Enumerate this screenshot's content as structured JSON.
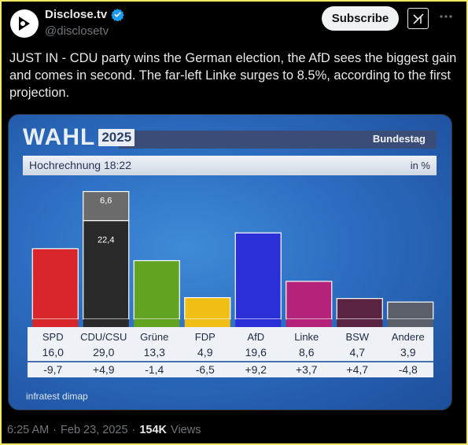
{
  "account": {
    "name": "Disclose.tv",
    "handle": "@disclosetv",
    "avatar_icon": "disclose-logo-icon",
    "verified_color": "#1d9bf0"
  },
  "actions": {
    "subscribe_label": "Subscribe",
    "grok_icon": "grok-icon",
    "more_icon": "more-dots-icon"
  },
  "tweet": {
    "text": "JUST IN - CDU party wins the German election, the AfD sees the biggest gain and comes in second. The far-left Linke surges to 8.5%, according to the first projection."
  },
  "media": {
    "wahl": "WAHL",
    "year": "2025",
    "bundestag": "Bundestag",
    "hochrechnung": "Hochrechnung 18:22",
    "unit": "in %",
    "source": "infratest dimap"
  },
  "chart_data": {
    "type": "bar",
    "categories": [
      "SPD",
      "CDU/CSU",
      "Grüne",
      "FDP",
      "AfD",
      "Linke",
      "BSW",
      "Andere"
    ],
    "values": [
      16.0,
      29.0,
      13.3,
      4.9,
      19.6,
      8.6,
      4.7,
      3.9
    ],
    "values_text": [
      "16,0",
      "29,0",
      "13,3",
      "4,9",
      "19,6",
      "8,6",
      "4,7",
      "3,9"
    ],
    "changes_text": [
      "-9,7",
      "+4,9",
      "-1,4",
      "-6,5",
      "+9,2",
      "+3,7",
      "+4,7",
      "-4,8"
    ],
    "colors": [
      "#d8262b",
      "#2a2a2a",
      "#63a322",
      "#f0bf16",
      "#2b2fd8",
      "#b5227a",
      "#5a2340",
      "#5a5f6a"
    ],
    "stacked": {
      "category": "CDU/CSU",
      "parts": [
        {
          "label": "22,4",
          "value": 22.4,
          "color": "#2a2a2a"
        },
        {
          "label": "6,6",
          "value": 6.6,
          "color": "#6b6b6b"
        }
      ]
    },
    "ylim": [
      0,
      30
    ]
  },
  "footer": {
    "time": "6:25 AM",
    "date": "Feb 23, 2025",
    "separator": "·",
    "views_count": "154K",
    "views_label": "Views"
  }
}
